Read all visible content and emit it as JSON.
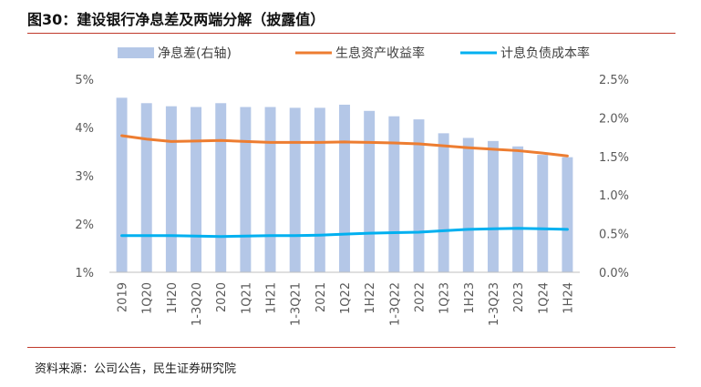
{
  "figure": {
    "title": "图30：建设银行净息差及两端分解（披露值）",
    "source": "资料来源：公司公告，民生证券研究院"
  },
  "chart_data": {
    "type": "bar",
    "categories": [
      "2019",
      "1Q20",
      "1H20",
      "1-3Q20",
      "2020",
      "1Q21",
      "1H21",
      "1-3Q21",
      "2021",
      "1Q22",
      "1H22",
      "1-3Q22",
      "2022",
      "1Q23",
      "1H23",
      "1-3Q23",
      "2023",
      "1Q24",
      "1H24"
    ],
    "series": [
      {
        "name": "净息差(右轴)",
        "kind": "bar",
        "axis": "right",
        "color": "#b4c7e7",
        "values": [
          2.26,
          2.19,
          2.15,
          2.14,
          2.19,
          2.14,
          2.14,
          2.13,
          2.13,
          2.17,
          2.09,
          2.02,
          1.98,
          1.8,
          1.74,
          1.7,
          1.63,
          1.52,
          1.49
        ]
      },
      {
        "name": "生息资产收益率",
        "kind": "line",
        "axis": "left",
        "color": "#ed7d31",
        "values": [
          3.83,
          3.76,
          3.71,
          3.72,
          3.73,
          3.71,
          3.69,
          3.69,
          3.69,
          3.7,
          3.69,
          3.68,
          3.66,
          3.62,
          3.58,
          3.55,
          3.52,
          3.47,
          3.41
        ]
      },
      {
        "name": "计息负债成本率",
        "kind": "line",
        "axis": "left",
        "color": "#00b0f0",
        "values": [
          1.76,
          1.76,
          1.76,
          1.75,
          1.74,
          1.75,
          1.76,
          1.76,
          1.77,
          1.79,
          1.81,
          1.82,
          1.83,
          1.86,
          1.89,
          1.9,
          1.91,
          1.9,
          1.89
        ]
      }
    ],
    "y_left": {
      "min": 1,
      "max": 5,
      "ticks": [
        "1%",
        "2%",
        "3%",
        "4%",
        "5%"
      ]
    },
    "y_right": {
      "min": 0,
      "max": 2.5,
      "ticks": [
        "0.0%",
        "0.5%",
        "1.0%",
        "1.5%",
        "2.0%",
        "2.5%"
      ]
    },
    "legend_position": "top",
    "grid": false
  }
}
